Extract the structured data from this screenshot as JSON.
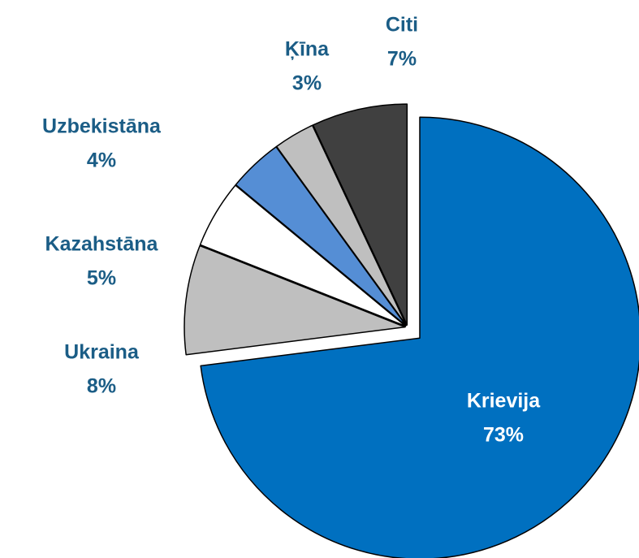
{
  "chart_data": {
    "type": "pie",
    "categories": [
      "Krievija",
      "Ukraina",
      "Kazahstāna",
      "Uzbekistāna",
      "Ķīna",
      "Citi"
    ],
    "values": [
      73,
      8,
      5,
      4,
      3,
      7
    ],
    "value_labels": [
      "73%",
      "8%",
      "5%",
      "4%",
      "3%",
      "7%"
    ],
    "colors": [
      "#0070c0",
      "#bfbfbf",
      "#ffffff",
      "#558ed5",
      "#bfbfbf",
      "#404040"
    ],
    "exploded": "Krievija"
  }
}
